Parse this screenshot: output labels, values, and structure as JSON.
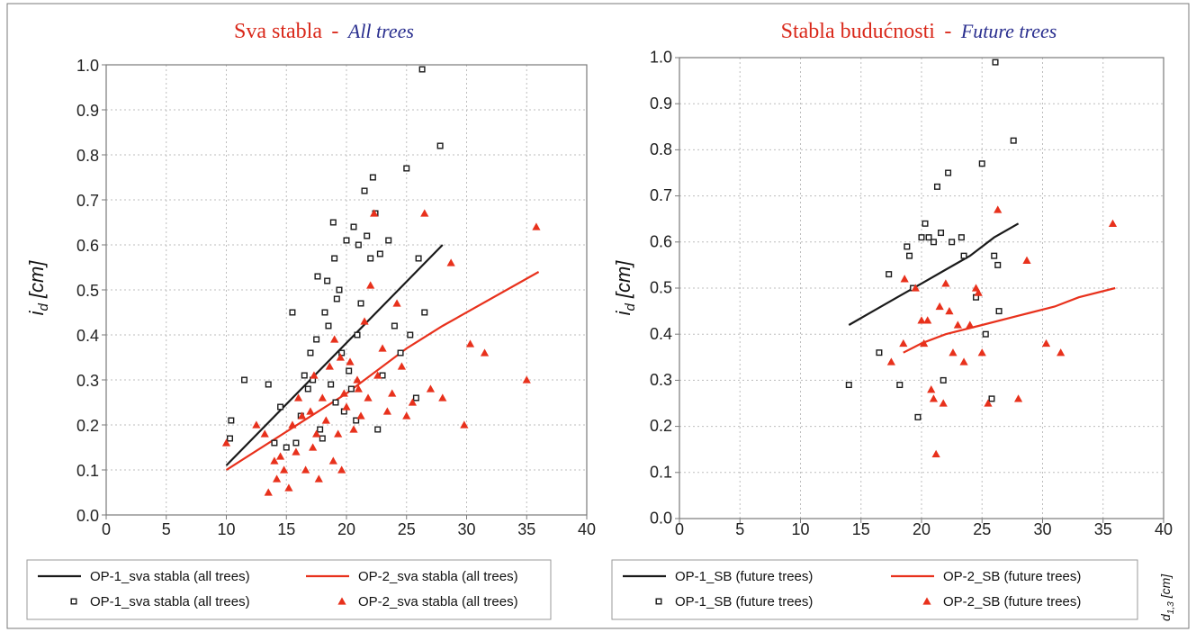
{
  "colors": {
    "op1": "#1a1a1a",
    "op2": "#e8311c",
    "title_red": "#d9281a",
    "title_blue": "#2a2f8f",
    "grid": "#bdbdbd",
    "frame": "#7a7a7a"
  },
  "chart_data": [
    {
      "type": "scatter",
      "title": "Sva stabla",
      "title_separator": "-",
      "subtitle": "All trees",
      "ylabel": "i",
      "ylabel_sub": "d",
      "ylabel_unit": "[cm]",
      "xlim": [
        0,
        40
      ],
      "ylim": [
        0,
        1
      ],
      "xticks": [
        "0",
        "5",
        "10",
        "15",
        "20",
        "25",
        "30",
        "35",
        "40"
      ],
      "yticks": [
        "0.0",
        "0.1",
        "0.2",
        "0.3",
        "0.4",
        "0.5",
        "0.6",
        "0.7",
        "0.8",
        "0.9",
        "1.0"
      ],
      "grid": true,
      "series": [
        {
          "name": "OP-1_sva stabla (all trees)",
          "kind": "line",
          "color_key": "op1",
          "points": [
            [
              10,
              0.11
            ],
            [
              28,
              0.6
            ]
          ]
        },
        {
          "name": "OP-2_sva stabla (all trees)",
          "kind": "line",
          "color_key": "op2",
          "points": [
            [
              10,
              0.1
            ],
            [
              20,
              0.27
            ],
            [
              25,
              0.37
            ],
            [
              28,
              0.42
            ],
            [
              36,
              0.54
            ]
          ]
        },
        {
          "name": "OP-1_sva stabla (all trees)",
          "kind": "scatter",
          "marker": "square",
          "color_key": "op1",
          "points": [
            [
              10.4,
              0.21
            ],
            [
              10.3,
              0.17
            ],
            [
              11.5,
              0.3
            ],
            [
              13.5,
              0.29
            ],
            [
              14,
              0.16
            ],
            [
              14.5,
              0.24
            ],
            [
              15,
              0.15
            ],
            [
              15.5,
              0.45
            ],
            [
              15.8,
              0.16
            ],
            [
              16.2,
              0.22
            ],
            [
              16.5,
              0.31
            ],
            [
              16.8,
              0.28
            ],
            [
              17,
              0.36
            ],
            [
              17.2,
              0.3
            ],
            [
              17.5,
              0.39
            ],
            [
              17.6,
              0.53
            ],
            [
              17.8,
              0.19
            ],
            [
              18,
              0.17
            ],
            [
              18.2,
              0.45
            ],
            [
              18.4,
              0.52
            ],
            [
              18.5,
              0.42
            ],
            [
              18.7,
              0.29
            ],
            [
              18.9,
              0.65
            ],
            [
              19,
              0.57
            ],
            [
              19.2,
              0.48
            ],
            [
              19.4,
              0.5
            ],
            [
              19.6,
              0.36
            ],
            [
              19.8,
              0.23
            ],
            [
              20,
              0.61
            ],
            [
              20.2,
              0.32
            ],
            [
              20.4,
              0.28
            ],
            [
              20.6,
              0.64
            ],
            [
              20.8,
              0.21
            ],
            [
              21,
              0.6
            ],
            [
              21.2,
              0.47
            ],
            [
              21.5,
              0.72
            ],
            [
              21.7,
              0.62
            ],
            [
              22,
              0.57
            ],
            [
              22.2,
              0.75
            ],
            [
              22.4,
              0.67
            ],
            [
              22.6,
              0.19
            ],
            [
              23,
              0.31
            ],
            [
              23.5,
              0.61
            ],
            [
              24,
              0.42
            ],
            [
              24.5,
              0.36
            ],
            [
              25,
              0.77
            ],
            [
              25.3,
              0.4
            ],
            [
              25.8,
              0.26
            ],
            [
              26,
              0.57
            ],
            [
              26.3,
              0.99
            ],
            [
              26.5,
              0.45
            ],
            [
              27.8,
              0.82
            ],
            [
              22.8,
              0.58
            ],
            [
              20.9,
              0.4
            ],
            [
              19.1,
              0.25
            ]
          ]
        },
        {
          "name": "OP-2_sva stabla (all trees)",
          "kind": "scatter",
          "marker": "triangle",
          "color_key": "op2",
          "points": [
            [
              10,
              0.16
            ],
            [
              12.5,
              0.2
            ],
            [
              13.2,
              0.18
            ],
            [
              13.5,
              0.05
            ],
            [
              14,
              0.12
            ],
            [
              14.2,
              0.08
            ],
            [
              14.5,
              0.13
            ],
            [
              14.8,
              0.1
            ],
            [
              15.2,
              0.06
            ],
            [
              15.5,
              0.2
            ],
            [
              15.8,
              0.14
            ],
            [
              16,
              0.26
            ],
            [
              16.3,
              0.22
            ],
            [
              16.6,
              0.1
            ],
            [
              17,
              0.23
            ],
            [
              17.2,
              0.15
            ],
            [
              17.5,
              0.18
            ],
            [
              17.7,
              0.08
            ],
            [
              18,
              0.26
            ],
            [
              18.3,
              0.21
            ],
            [
              18.6,
              0.33
            ],
            [
              18.9,
              0.12
            ],
            [
              19,
              0.39
            ],
            [
              19.3,
              0.18
            ],
            [
              19.6,
              0.1
            ],
            [
              19.8,
              0.27
            ],
            [
              20,
              0.24
            ],
            [
              20.3,
              0.34
            ],
            [
              20.6,
              0.19
            ],
            [
              20.9,
              0.3
            ],
            [
              21.2,
              0.22
            ],
            [
              21.5,
              0.43
            ],
            [
              21.8,
              0.26
            ],
            [
              22,
              0.51
            ],
            [
              22.3,
              0.67
            ],
            [
              22.6,
              0.31
            ],
            [
              23,
              0.37
            ],
            [
              23.4,
              0.23
            ],
            [
              23.8,
              0.27
            ],
            [
              24.2,
              0.47
            ],
            [
              24.6,
              0.33
            ],
            [
              25,
              0.22
            ],
            [
              25.5,
              0.25
            ],
            [
              26.5,
              0.67
            ],
            [
              27,
              0.28
            ],
            [
              28,
              0.26
            ],
            [
              28.7,
              0.56
            ],
            [
              29.8,
              0.2
            ],
            [
              30.3,
              0.38
            ],
            [
              31.5,
              0.36
            ],
            [
              35,
              0.3
            ],
            [
              35.8,
              0.64
            ],
            [
              17.3,
              0.31
            ],
            [
              19.5,
              0.35
            ],
            [
              21,
              0.28
            ]
          ]
        }
      ],
      "legend": {
        "position": "bottom",
        "items": [
          {
            "kind": "line",
            "color_key": "op1",
            "label": "OP-1_sva stabla (all trees)"
          },
          {
            "kind": "line",
            "color_key": "op2",
            "label": "OP-2_sva stabla (all trees)"
          },
          {
            "kind": "square",
            "color_key": "op1",
            "label": "OP-1_sva stabla (all trees)"
          },
          {
            "kind": "triangle",
            "color_key": "op2",
            "label": "OP-2_sva stabla (all trees)"
          }
        ]
      }
    },
    {
      "type": "scatter",
      "title": "Stabla budućnosti",
      "title_separator": "-",
      "subtitle": "Future trees",
      "ylabel": "i",
      "ylabel_sub": "d",
      "ylabel_unit": "[cm]",
      "xlabel": "d",
      "xlabel_sub": "1,3",
      "xlabel_unit": "[cm]",
      "xlim": [
        0,
        40
      ],
      "ylim": [
        0,
        1
      ],
      "xticks": [
        "0",
        "5",
        "10",
        "15",
        "20",
        "25",
        "30",
        "35",
        "40"
      ],
      "yticks": [
        "0.0",
        "0.1",
        "0.2",
        "0.3",
        "0.4",
        "0.5",
        "0.6",
        "0.7",
        "0.8",
        "0.9",
        "1.0"
      ],
      "grid": true,
      "series": [
        {
          "name": "OP-1_SB (future trees)",
          "kind": "line",
          "color_key": "op1",
          "points": [
            [
              14,
              0.42
            ],
            [
              16,
              0.45
            ],
            [
              18,
              0.48
            ],
            [
              20,
              0.51
            ],
            [
              22,
              0.54
            ],
            [
              24,
              0.57
            ],
            [
              26,
              0.61
            ],
            [
              28,
              0.64
            ]
          ]
        },
        {
          "name": "OP-2_SB (future trees)",
          "kind": "line",
          "color_key": "op2",
          "points": [
            [
              18.5,
              0.36
            ],
            [
              20,
              0.38
            ],
            [
              22,
              0.4
            ],
            [
              25,
              0.42
            ],
            [
              28,
              0.44
            ],
            [
              31,
              0.46
            ],
            [
              33,
              0.48
            ],
            [
              36,
              0.5
            ]
          ]
        },
        {
          "name": "OP-1_SB (future trees)",
          "kind": "scatter",
          "marker": "square",
          "color_key": "op1",
          "points": [
            [
              14,
              0.29
            ],
            [
              16.5,
              0.36
            ],
            [
              17.3,
              0.53
            ],
            [
              18.2,
              0.29
            ],
            [
              18.8,
              0.59
            ],
            [
              19,
              0.57
            ],
            [
              19.3,
              0.5
            ],
            [
              19.7,
              0.22
            ],
            [
              20,
              0.61
            ],
            [
              20.3,
              0.64
            ],
            [
              20.6,
              0.61
            ],
            [
              21,
              0.6
            ],
            [
              21.3,
              0.72
            ],
            [
              21.6,
              0.62
            ],
            [
              21.8,
              0.3
            ],
            [
              22.2,
              0.75
            ],
            [
              22.5,
              0.6
            ],
            [
              23.3,
              0.61
            ],
            [
              23.5,
              0.57
            ],
            [
              24.5,
              0.48
            ],
            [
              25,
              0.77
            ],
            [
              25.3,
              0.4
            ],
            [
              25.8,
              0.26
            ],
            [
              26,
              0.57
            ],
            [
              26.1,
              0.99
            ],
            [
              26.3,
              0.55
            ],
            [
              26.4,
              0.45
            ],
            [
              27.6,
              0.82
            ]
          ]
        },
        {
          "name": "OP-2_SB (future trees)",
          "kind": "scatter",
          "marker": "triangle",
          "color_key": "op2",
          "points": [
            [
              17.5,
              0.34
            ],
            [
              18.5,
              0.38
            ],
            [
              18.6,
              0.52
            ],
            [
              19.5,
              0.5
            ],
            [
              20,
              0.43
            ],
            [
              20.2,
              0.38
            ],
            [
              20.5,
              0.43
            ],
            [
              20.8,
              0.28
            ],
            [
              21,
              0.26
            ],
            [
              21.2,
              0.14
            ],
            [
              21.5,
              0.46
            ],
            [
              21.8,
              0.25
            ],
            [
              22,
              0.51
            ],
            [
              22.3,
              0.45
            ],
            [
              22.6,
              0.36
            ],
            [
              23,
              0.42
            ],
            [
              23.5,
              0.34
            ],
            [
              24,
              0.42
            ],
            [
              24.5,
              0.5
            ],
            [
              24.7,
              0.49
            ],
            [
              25,
              0.36
            ],
            [
              25.5,
              0.25
            ],
            [
              26.3,
              0.67
            ],
            [
              28,
              0.26
            ],
            [
              28.7,
              0.56
            ],
            [
              30.3,
              0.38
            ],
            [
              31.5,
              0.36
            ],
            [
              35.8,
              0.64
            ]
          ]
        }
      ],
      "legend": {
        "position": "bottom",
        "items": [
          {
            "kind": "line",
            "color_key": "op1",
            "label": "OP-1_SB (future trees)"
          },
          {
            "kind": "line",
            "color_key": "op2",
            "label": "OP-2_SB (future trees)"
          },
          {
            "kind": "square",
            "color_key": "op1",
            "label": "OP-1_SB (future trees)"
          },
          {
            "kind": "triangle",
            "color_key": "op2",
            "label": "OP-2_SB (future trees)"
          }
        ]
      }
    }
  ]
}
